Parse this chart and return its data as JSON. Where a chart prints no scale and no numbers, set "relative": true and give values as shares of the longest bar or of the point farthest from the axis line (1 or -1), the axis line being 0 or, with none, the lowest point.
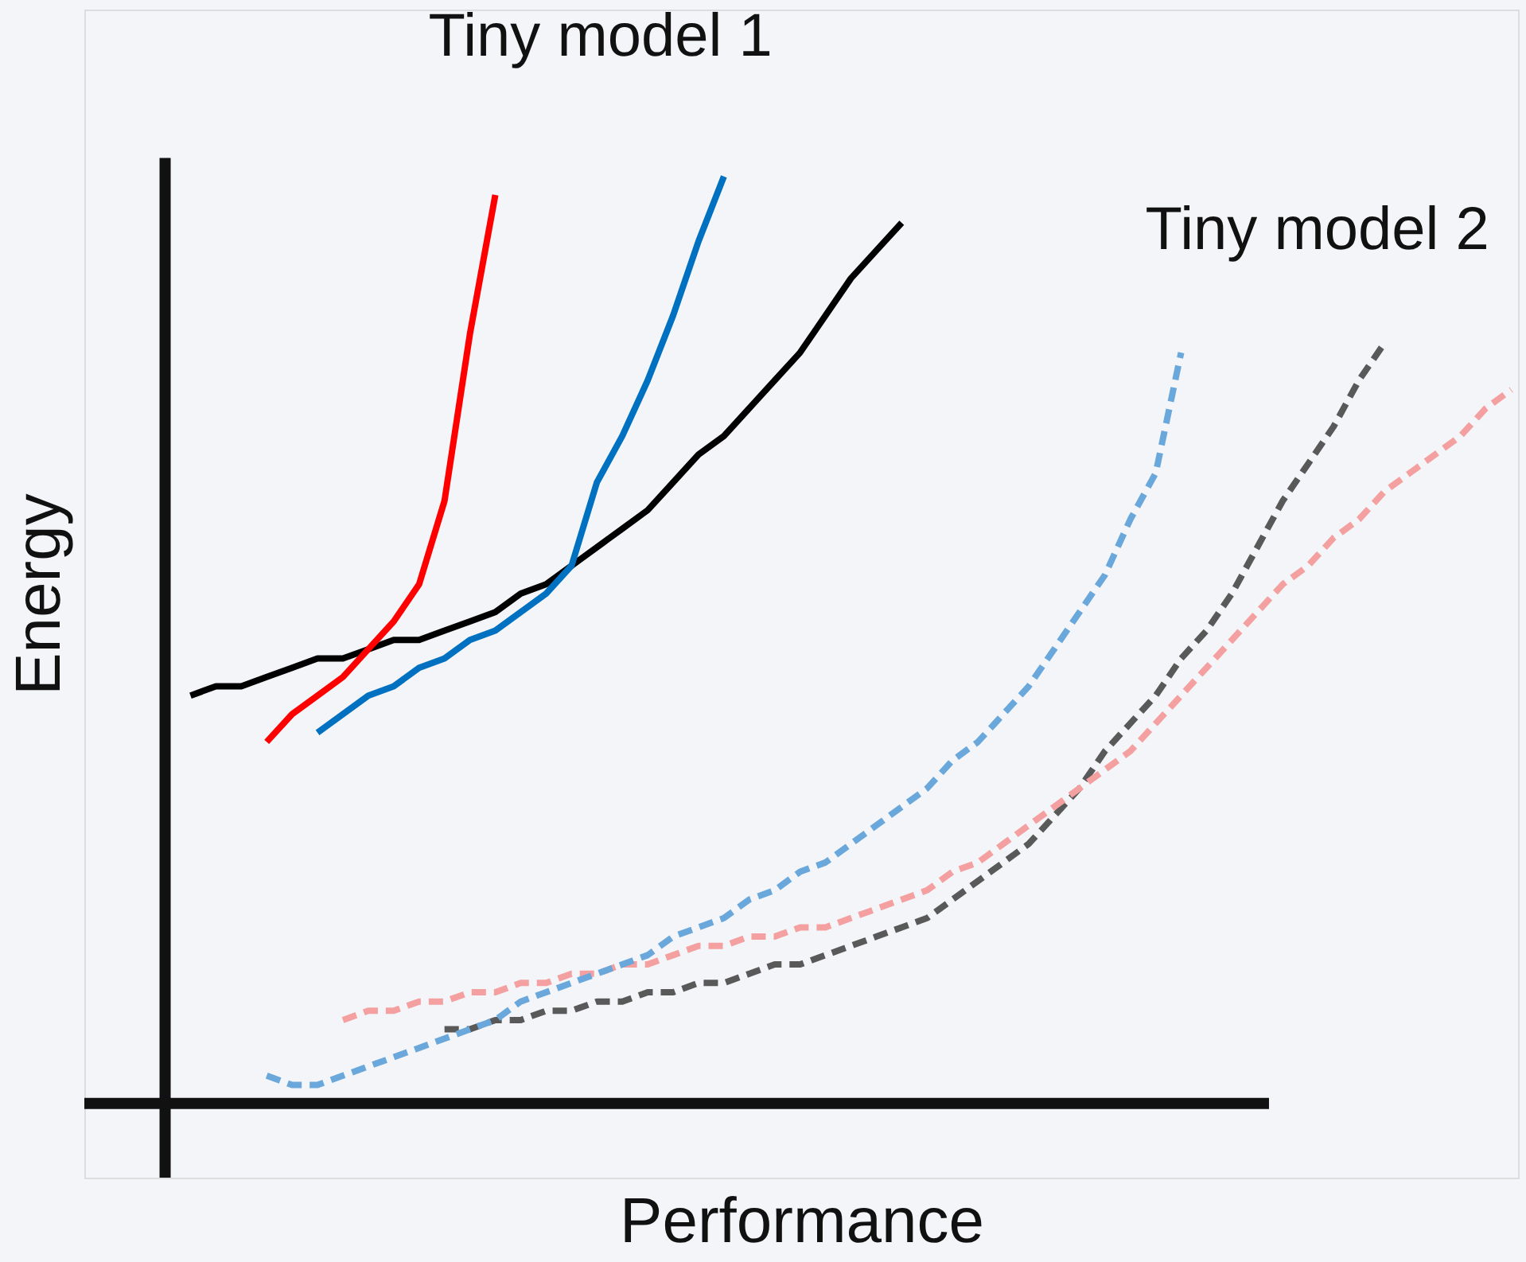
{
  "chart_data": {
    "type": "line",
    "relative": true,
    "xlabel": "Performance",
    "ylabel": "Energy",
    "tick_labels": false,
    "grid": false,
    "marker": "none",
    "annotations": [
      "Tiny model 1",
      "Tiny model 2"
    ],
    "categories": [
      null,
      null,
      null,
      null,
      null,
      null,
      null,
      null,
      null,
      null,
      null,
      null,
      null,
      null,
      null,
      null,
      null,
      null,
      null,
      null,
      null,
      null,
      null,
      null,
      null,
      null,
      null,
      null,
      null,
      null,
      null,
      null,
      null,
      null,
      null,
      null,
      null,
      null,
      null,
      null,
      null,
      null,
      null,
      null,
      null,
      null,
      null,
      null,
      null,
      null,
      null,
      null,
      null,
      null
    ],
    "series": [
      {
        "color": "#ff0000",
        "line_style": "solid",
        "values": [
          null,
          null,
          null,
          null,
          0.39,
          0.42,
          0.44,
          0.46,
          0.49,
          0.52,
          0.56,
          0.65,
          0.83,
          0.98,
          null,
          null,
          null,
          null,
          null,
          null,
          null,
          null,
          null,
          null,
          null,
          null,
          null,
          null,
          null,
          null,
          null,
          null,
          null,
          null,
          null,
          null,
          null,
          null,
          null,
          null,
          null,
          null,
          null,
          null,
          null,
          null,
          null,
          null,
          null,
          null,
          null,
          null,
          null,
          null
        ]
      },
      {
        "color": "#0070c0",
        "line_style": "solid",
        "values": [
          null,
          null,
          null,
          null,
          null,
          null,
          0.4,
          0.42,
          0.44,
          0.45,
          0.47,
          0.48,
          0.5,
          0.51,
          0.53,
          0.55,
          0.58,
          0.67,
          0.72,
          0.78,
          0.85,
          0.93,
          1.0,
          null,
          null,
          null,
          null,
          null,
          null,
          null,
          null,
          null,
          null,
          null,
          null,
          null,
          null,
          null,
          null,
          null,
          null,
          null,
          null,
          null,
          null,
          null,
          null,
          null,
          null,
          null,
          null,
          null,
          null,
          null
        ]
      },
      {
        "color": "#000000",
        "line_style": "solid",
        "values": [
          null,
          0.44,
          0.45,
          0.45,
          0.46,
          0.47,
          0.48,
          0.48,
          0.49,
          0.5,
          0.5,
          0.51,
          0.52,
          0.53,
          0.55,
          0.56,
          0.58,
          0.6,
          0.62,
          0.64,
          0.67,
          0.7,
          0.72,
          0.75,
          0.78,
          0.81,
          0.85,
          0.89,
          0.92,
          0.95,
          null,
          null,
          null,
          null,
          null,
          null,
          null,
          null,
          null,
          null,
          null,
          null,
          null,
          null,
          null,
          null,
          null,
          null,
          null,
          null,
          null,
          null,
          null,
          null
        ]
      },
      {
        "color": "#6aa8dc",
        "line_style": "dashed",
        "values": [
          null,
          null,
          null,
          null,
          0.03,
          0.02,
          0.02,
          0.03,
          0.04,
          0.05,
          0.06,
          0.07,
          0.08,
          0.09,
          0.11,
          0.12,
          0.13,
          0.14,
          0.15,
          0.16,
          0.18,
          0.19,
          0.2,
          0.22,
          0.23,
          0.25,
          0.26,
          0.28,
          0.3,
          0.32,
          0.34,
          0.37,
          0.39,
          0.42,
          0.45,
          0.49,
          0.53,
          0.57,
          0.63,
          0.68,
          0.81,
          null,
          null,
          null,
          null,
          null,
          null,
          null,
          null,
          null,
          null,
          null,
          null,
          null
        ]
      },
      {
        "color": "#f4a0a0",
        "line_style": "dashed",
        "values": [
          null,
          null,
          null,
          null,
          null,
          null,
          null,
          0.09,
          0.1,
          0.1,
          0.11,
          0.11,
          0.12,
          0.12,
          0.13,
          0.13,
          0.14,
          0.14,
          0.15,
          0.15,
          0.16,
          0.17,
          0.17,
          0.18,
          0.18,
          0.19,
          0.19,
          0.2,
          0.21,
          0.22,
          0.23,
          0.25,
          0.26,
          0.28,
          0.3,
          0.32,
          0.34,
          0.36,
          0.38,
          0.41,
          0.44,
          0.47,
          0.5,
          0.53,
          0.56,
          0.58,
          0.61,
          0.63,
          0.66,
          0.68,
          0.7,
          0.72,
          0.75,
          0.77
        ]
      },
      {
        "color": "#595959",
        "line_style": "dashed",
        "values": [
          null,
          null,
          null,
          null,
          null,
          null,
          null,
          null,
          null,
          null,
          null,
          0.08,
          0.08,
          0.09,
          0.09,
          0.1,
          0.1,
          0.11,
          0.11,
          0.12,
          0.12,
          0.13,
          0.13,
          0.14,
          0.15,
          0.15,
          0.16,
          0.17,
          0.18,
          0.19,
          0.2,
          0.22,
          0.24,
          0.26,
          0.28,
          0.31,
          0.34,
          0.38,
          0.41,
          0.44,
          0.48,
          0.51,
          0.55,
          0.6,
          0.65,
          0.69,
          0.73,
          0.78,
          0.82,
          null,
          null,
          null,
          null,
          null
        ]
      }
    ]
  }
}
